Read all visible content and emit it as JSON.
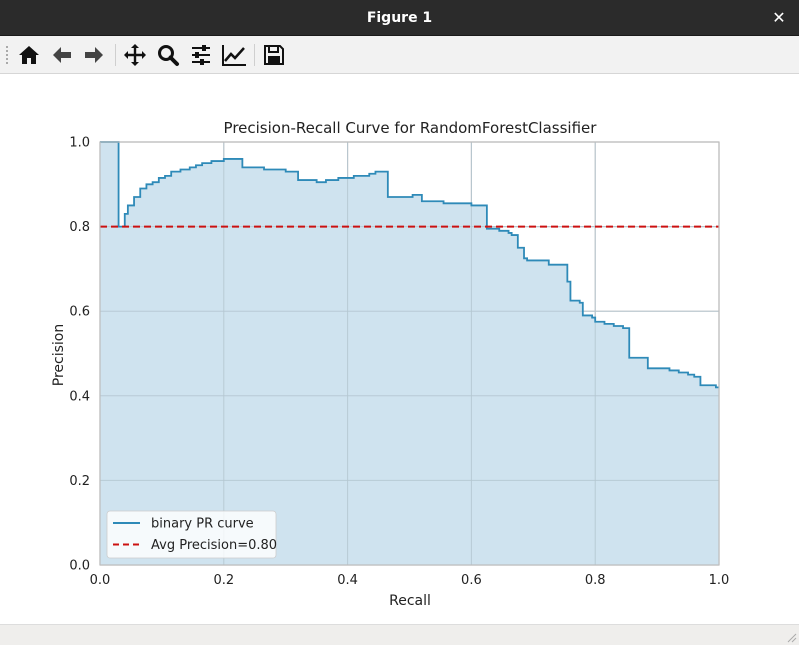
{
  "window": {
    "title": "Figure 1",
    "close_glyph": "✕"
  },
  "toolbar": {
    "buttons": [
      {
        "name": "home-button",
        "icon": "home-icon",
        "tip": "Reset original view"
      },
      {
        "name": "back-button",
        "icon": "arrow-left-icon",
        "tip": "Back to previous view"
      },
      {
        "name": "forward-button",
        "icon": "arrow-right-icon",
        "tip": "Forward to next view"
      },
      {
        "name": "pan-button",
        "icon": "move-icon",
        "tip": "Pan axes"
      },
      {
        "name": "zoom-button",
        "icon": "magnifier-icon",
        "tip": "Zoom to rectangle"
      },
      {
        "name": "subplots-button",
        "icon": "sliders-icon",
        "tip": "Configure subplots"
      },
      {
        "name": "edit-axes-button",
        "icon": "line-chart-icon",
        "tip": "Edit axis"
      },
      {
        "name": "save-button",
        "icon": "floppy-disk-icon",
        "tip": "Save the figure"
      }
    ]
  },
  "chart_data": {
    "type": "line",
    "title": "Precision-Recall Curve for RandomForestClassifier",
    "xlabel": "Recall",
    "ylabel": "Precision",
    "xlim": [
      0.0,
      1.0
    ],
    "ylim": [
      0.0,
      1.0
    ],
    "xticks": [
      "0.0",
      "0.2",
      "0.4",
      "0.6",
      "0.8",
      "1.0"
    ],
    "yticks": [
      "0.0",
      "0.2",
      "0.4",
      "0.6",
      "0.8",
      "1.0"
    ],
    "grid": true,
    "legend_position": "lower-left",
    "series": [
      {
        "name": "binary PR curve",
        "style": "step",
        "filled": true,
        "color": "#2e8ab8",
        "fill_color": "#cce2ee",
        "recall": [
          1.0,
          0.995,
          0.97,
          0.96,
          0.95,
          0.935,
          0.92,
          0.885,
          0.855,
          0.845,
          0.83,
          0.815,
          0.8,
          0.795,
          0.78,
          0.775,
          0.76,
          0.755,
          0.725,
          0.69,
          0.685,
          0.675,
          0.665,
          0.66,
          0.645,
          0.625,
          0.6,
          0.575,
          0.555,
          0.52,
          0.505,
          0.465,
          0.445,
          0.435,
          0.41,
          0.385,
          0.365,
          0.35,
          0.32,
          0.3,
          0.265,
          0.23,
          0.21,
          0.2,
          0.18,
          0.165,
          0.155,
          0.145,
          0.13,
          0.115,
          0.105,
          0.095,
          0.085,
          0.075,
          0.065,
          0.055,
          0.045,
          0.04,
          0.025,
          0.03,
          0.0
        ],
        "precision": [
          0.42,
          0.425,
          0.445,
          0.45,
          0.455,
          0.46,
          0.465,
          0.49,
          0.56,
          0.565,
          0.57,
          0.575,
          0.585,
          0.59,
          0.62,
          0.625,
          0.67,
          0.71,
          0.72,
          0.725,
          0.75,
          0.78,
          0.785,
          0.79,
          0.795,
          0.85,
          0.855,
          0.855,
          0.86,
          0.875,
          0.87,
          0.93,
          0.925,
          0.92,
          0.915,
          0.91,
          0.905,
          0.91,
          0.93,
          0.935,
          0.94,
          0.96,
          0.96,
          0.955,
          0.95,
          0.945,
          0.94,
          0.935,
          0.93,
          0.92,
          0.915,
          0.905,
          0.9,
          0.89,
          0.87,
          0.85,
          0.83,
          0.8,
          0.8,
          1.0,
          1.0
        ]
      },
      {
        "name": "Avg Precision=0.80",
        "style": "dashed",
        "color": "#cc1111",
        "y": 0.8
      }
    ],
    "legend": [
      "binary PR curve",
      "Avg Precision=0.80"
    ]
  }
}
